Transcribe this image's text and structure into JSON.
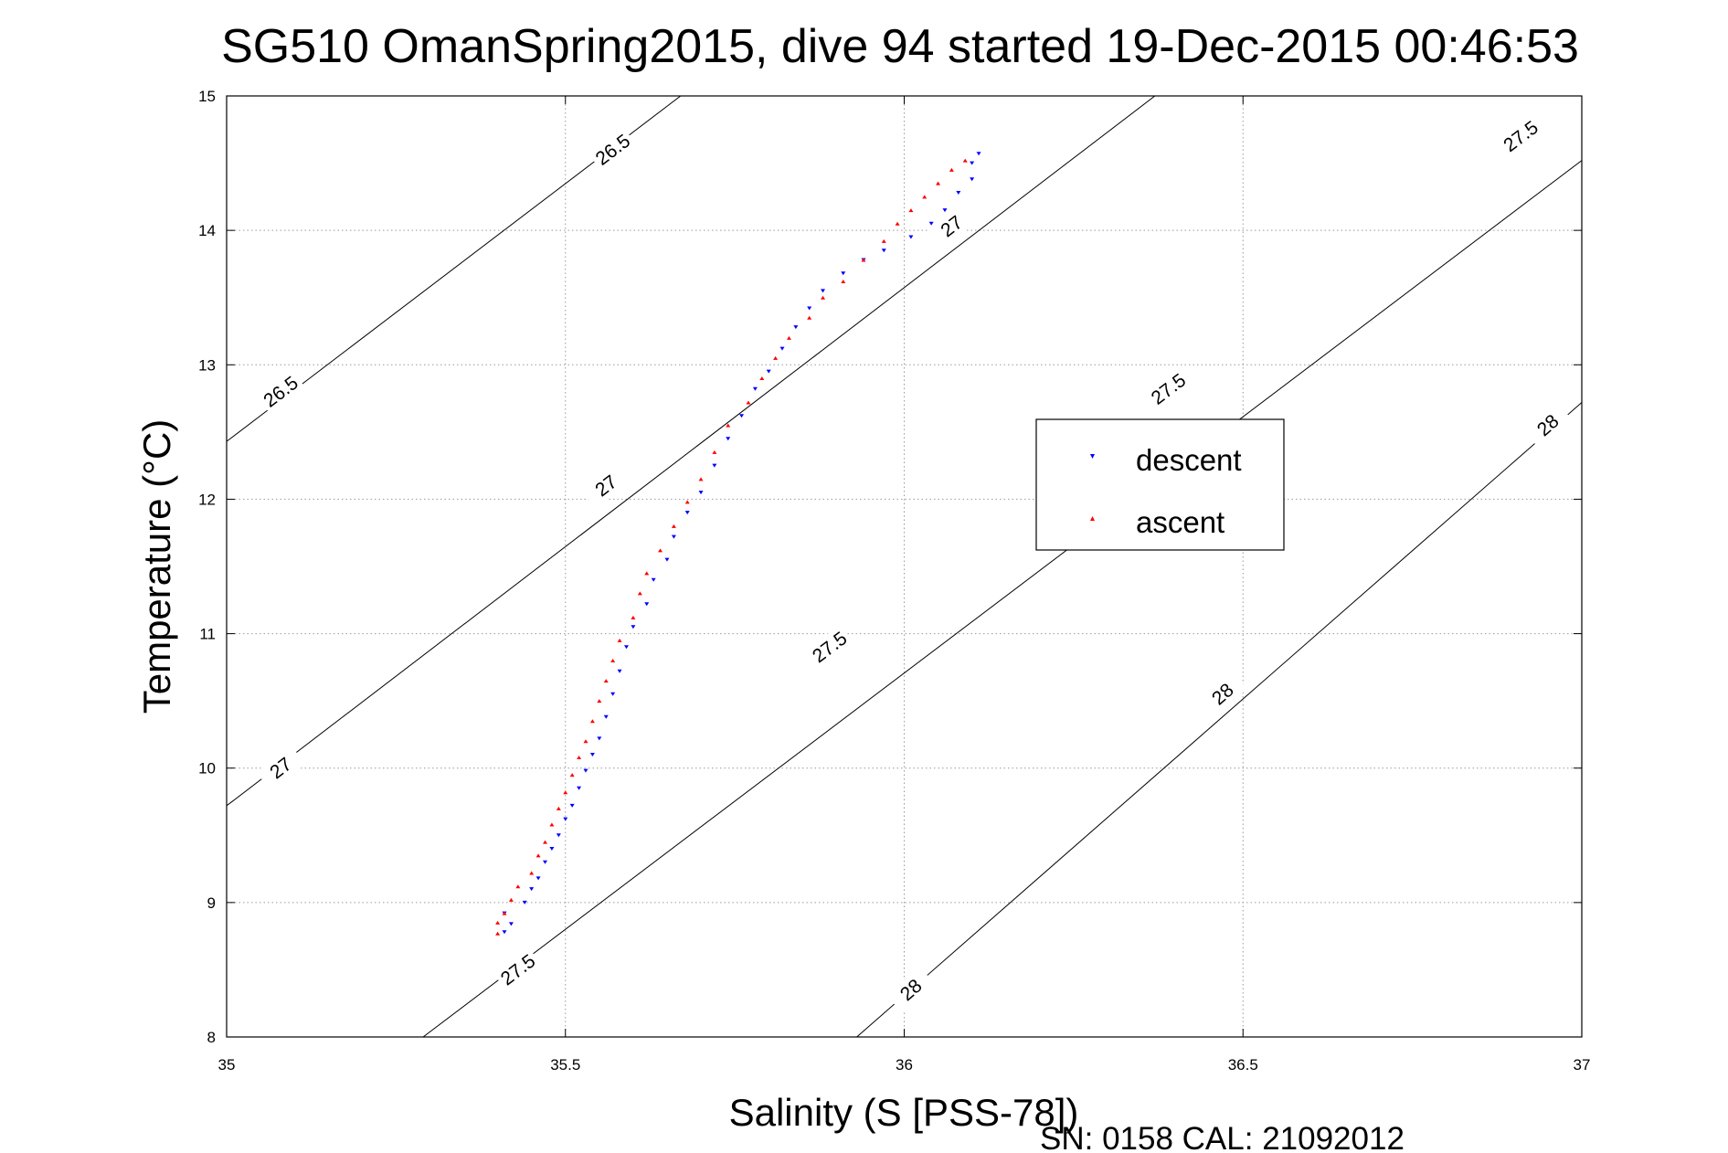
{
  "chart_data": {
    "type": "scatter",
    "title": "SG510 OmanSpring2015, dive 94 started 19-Dec-2015 00:46:53",
    "xlabel": "Salinity (S [PSS-78])",
    "ylabel": "Temperature (°C)",
    "xlim": [
      35,
      37
    ],
    "ylim": [
      8,
      15
    ],
    "xticks": [
      "35",
      "35.5",
      "36",
      "36.5",
      "37"
    ],
    "yticks": [
      "8",
      "9",
      "10",
      "11",
      "12",
      "13",
      "14",
      "15"
    ],
    "grid": true,
    "legend_position": "center-right",
    "footer": "SN: 0158  CAL: 21092012",
    "series": [
      {
        "name": "descent",
        "color": "#0000ff",
        "marker": "triangle-down",
        "points": [
          [
            35.41,
            8.78
          ],
          [
            35.42,
            8.84
          ],
          [
            35.41,
            8.92
          ],
          [
            35.44,
            9.0
          ],
          [
            35.45,
            9.1
          ],
          [
            35.46,
            9.18
          ],
          [
            35.47,
            9.3
          ],
          [
            35.48,
            9.4
          ],
          [
            35.49,
            9.5
          ],
          [
            35.5,
            9.62
          ],
          [
            35.51,
            9.72
          ],
          [
            35.52,
            9.85
          ],
          [
            35.53,
            9.98
          ],
          [
            35.54,
            10.1
          ],
          [
            35.55,
            10.22
          ],
          [
            35.56,
            10.38
          ],
          [
            35.57,
            10.55
          ],
          [
            35.58,
            10.72
          ],
          [
            35.59,
            10.9
          ],
          [
            35.6,
            11.05
          ],
          [
            35.62,
            11.22
          ],
          [
            35.63,
            11.4
          ],
          [
            35.65,
            11.55
          ],
          [
            35.66,
            11.72
          ],
          [
            35.68,
            11.9
          ],
          [
            35.7,
            12.05
          ],
          [
            35.72,
            12.25
          ],
          [
            35.74,
            12.45
          ],
          [
            35.76,
            12.62
          ],
          [
            35.78,
            12.82
          ],
          [
            35.8,
            12.95
          ],
          [
            35.82,
            13.12
          ],
          [
            35.84,
            13.28
          ],
          [
            35.86,
            13.42
          ],
          [
            35.88,
            13.55
          ],
          [
            35.91,
            13.68
          ],
          [
            35.94,
            13.78
          ],
          [
            35.97,
            13.85
          ],
          [
            36.01,
            13.95
          ],
          [
            36.04,
            14.05
          ],
          [
            36.06,
            14.15
          ],
          [
            36.08,
            14.28
          ],
          [
            36.1,
            14.38
          ],
          [
            36.1,
            14.5
          ],
          [
            36.11,
            14.57
          ]
        ]
      },
      {
        "name": "ascent",
        "color": "#ff0000",
        "marker": "triangle-up",
        "points": [
          [
            35.4,
            8.77
          ],
          [
            35.4,
            8.85
          ],
          [
            35.41,
            8.92
          ],
          [
            35.42,
            9.02
          ],
          [
            35.43,
            9.12
          ],
          [
            35.45,
            9.22
          ],
          [
            35.46,
            9.35
          ],
          [
            35.47,
            9.45
          ],
          [
            35.48,
            9.58
          ],
          [
            35.49,
            9.7
          ],
          [
            35.5,
            9.82
          ],
          [
            35.51,
            9.95
          ],
          [
            35.52,
            10.08
          ],
          [
            35.53,
            10.2
          ],
          [
            35.54,
            10.35
          ],
          [
            35.55,
            10.5
          ],
          [
            35.56,
            10.65
          ],
          [
            35.57,
            10.8
          ],
          [
            35.58,
            10.95
          ],
          [
            35.6,
            11.12
          ],
          [
            35.61,
            11.3
          ],
          [
            35.62,
            11.45
          ],
          [
            35.64,
            11.62
          ],
          [
            35.66,
            11.8
          ],
          [
            35.68,
            11.98
          ],
          [
            35.7,
            12.15
          ],
          [
            35.72,
            12.35
          ],
          [
            35.74,
            12.55
          ],
          [
            35.77,
            12.72
          ],
          [
            35.79,
            12.9
          ],
          [
            35.81,
            13.05
          ],
          [
            35.83,
            13.2
          ],
          [
            35.86,
            13.35
          ],
          [
            35.88,
            13.5
          ],
          [
            35.91,
            13.62
          ],
          [
            35.94,
            13.78
          ],
          [
            35.97,
            13.92
          ],
          [
            35.99,
            14.05
          ],
          [
            36.01,
            14.15
          ],
          [
            36.03,
            14.25
          ],
          [
            36.05,
            14.35
          ],
          [
            36.07,
            14.45
          ],
          [
            36.09,
            14.52
          ]
        ]
      }
    ],
    "density_contours": [
      {
        "label": "26.5",
        "points": [
          [
            35,
            12.43
          ],
          [
            35.67,
            15
          ]
        ],
        "label_positions": [
          [
            35.08,
            12.8
          ],
          [
            35.57,
            14.6
          ]
        ]
      },
      {
        "label": "27",
        "points": [
          [
            35,
            9.72
          ],
          [
            36.37,
            15
          ]
        ],
        "label_positions": [
          [
            35.08,
            10.0
          ],
          [
            35.56,
            12.1
          ],
          [
            36.07,
            14.03
          ]
        ]
      },
      {
        "label": "27.5",
        "points": [
          [
            35.29,
            8
          ],
          [
            37,
            14.52
          ]
        ],
        "label_positions": [
          [
            35.43,
            8.5
          ],
          [
            35.89,
            10.9
          ],
          [
            36.39,
            12.82
          ],
          [
            36.91,
            14.7
          ]
        ]
      },
      {
        "label": "28",
        "points": [
          [
            35.93,
            8
          ],
          [
            37,
            12.72
          ]
        ],
        "label_positions": [
          [
            36.01,
            8.35
          ],
          [
            36.47,
            10.55
          ],
          [
            36.95,
            12.55
          ]
        ]
      }
    ]
  }
}
